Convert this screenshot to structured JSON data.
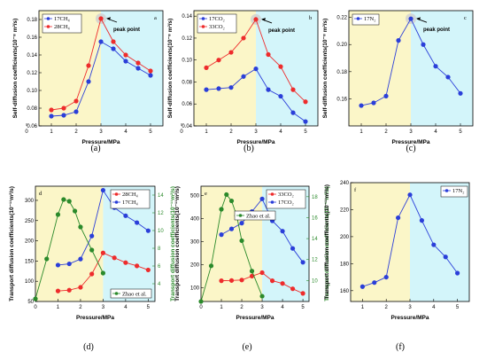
{
  "colors": {
    "red": "#ee2c2c",
    "blue": "#2b3fd9",
    "green": "#2b8a2b",
    "yellow_band": "#fbf6c8",
    "cyan_band": "#d3f5fa"
  },
  "chart_data": [
    {
      "id": "a",
      "panel_label": "(a)",
      "letter": "a",
      "type": "line",
      "xlabel": "Pressure/MPa",
      "ylabel": "Self-diffusion coefficients(10⁻⁸ m²/s)",
      "xlim": [
        0.5,
        5.5
      ],
      "ylim": [
        0.06,
        0.19
      ],
      "xticks": [
        0,
        1,
        2,
        3,
        4,
        5
      ],
      "yticks": [
        0.06,
        0.08,
        0.1,
        0.12,
        0.14,
        0.16,
        0.18
      ],
      "ydec": 2,
      "band_split": 3,
      "annotation": "peak point",
      "peak": {
        "x": 3,
        "y": 0.181
      },
      "series": [
        {
          "name": "17CH₄",
          "color": "blue",
          "x": [
            1,
            1.5,
            2,
            2.5,
            3,
            3.5,
            4,
            4.5,
            5
          ],
          "y": [
            0.071,
            0.072,
            0.076,
            0.11,
            0.155,
            0.147,
            0.133,
            0.125,
            0.117
          ]
        },
        {
          "name": "28CH₄",
          "color": "red",
          "x": [
            1,
            1.5,
            2,
            2.5,
            3,
            3.5,
            4,
            4.5,
            5
          ],
          "y": [
            0.078,
            0.08,
            0.088,
            0.128,
            0.181,
            0.155,
            0.14,
            0.131,
            0.122
          ]
        }
      ]
    },
    {
      "id": "b",
      "panel_label": "(b)",
      "letter": "b",
      "type": "line",
      "xlabel": "Pressure/MPa",
      "ylabel": "Self-diffusion coefficients(10⁻⁸ m²/s)",
      "xlim": [
        0.5,
        5.5
      ],
      "ylim": [
        0.04,
        0.145
      ],
      "xticks": [
        0,
        1,
        2,
        3,
        4,
        5
      ],
      "yticks": [
        0.04,
        0.06,
        0.08,
        0.1,
        0.12,
        0.14
      ],
      "ydec": 2,
      "band_split": 3,
      "annotation": "peak point",
      "peak": {
        "x": 3,
        "y": 0.137
      },
      "series": [
        {
          "name": "17CO₂",
          "color": "blue",
          "x": [
            1,
            1.5,
            2,
            2.5,
            3,
            3.5,
            4,
            4.5,
            5
          ],
          "y": [
            0.073,
            0.074,
            0.075,
            0.085,
            0.092,
            0.073,
            0.067,
            0.052,
            0.044
          ]
        },
        {
          "name": "33CO₂",
          "color": "red",
          "x": [
            1,
            1.5,
            2,
            2.5,
            3,
            3.5,
            4,
            4.5,
            5
          ],
          "y": [
            0.093,
            0.1,
            0.107,
            0.12,
            0.137,
            0.105,
            0.094,
            0.073,
            0.062
          ]
        }
      ]
    },
    {
      "id": "c",
      "panel_label": "(c)",
      "letter": "c",
      "type": "line",
      "xlabel": "Pressure/MPa",
      "ylabel": "Self-diffusion coefficients(10⁻⁸ m²/s)",
      "xlim": [
        0.5,
        5.5
      ],
      "ylim": [
        0.14,
        0.225
      ],
      "xticks": [
        1,
        2,
        3,
        4,
        5
      ],
      "yticks": [
        0.16,
        0.18,
        0.2,
        0.22
      ],
      "ydec": 2,
      "band_split": 3,
      "annotation": "peak point",
      "peak": {
        "x": 3,
        "y": 0.219
      },
      "series": [
        {
          "name": "17N₂",
          "color": "blue",
          "x": [
            1,
            1.5,
            2,
            2.5,
            3,
            3.5,
            4,
            4.5,
            5
          ],
          "y": [
            0.155,
            0.157,
            0.162,
            0.203,
            0.219,
            0.2,
            0.184,
            0.176,
            0.164
          ]
        }
      ]
    },
    {
      "id": "d",
      "panel_label": "(d)",
      "letter": "d",
      "type": "line",
      "xlabel": "Pressure/MPa",
      "ylabel": "Transport diffusion coefficients(10⁻¹¹m²/s)",
      "ylabel2": "Transport diffusion coefficients(10⁻¹¹m²/s)",
      "xlim": [
        0,
        5.3
      ],
      "ylim": [
        50,
        335
      ],
      "xticks": [
        0,
        1,
        2,
        3,
        4,
        5
      ],
      "yticks": [
        50,
        100,
        150,
        200,
        250,
        300
      ],
      "ydec": 0,
      "ylim2": [
        2,
        15
      ],
      "yticks2": [
        4,
        6,
        8,
        10,
        12,
        14
      ],
      "band_split": 3,
      "series": [
        {
          "name": "28CH₄",
          "color": "red",
          "x": [
            1,
            1.5,
            2,
            2.5,
            3,
            3.5,
            4,
            4.5,
            5
          ],
          "y": [
            76,
            78,
            85,
            118,
            170,
            158,
            146,
            138,
            128
          ]
        },
        {
          "name": "17CH₄",
          "color": "blue",
          "x": [
            1,
            1.5,
            2,
            2.5,
            3,
            3.5,
            4,
            4.5,
            5
          ],
          "y": [
            140,
            143,
            155,
            212,
            325,
            282,
            262,
            245,
            225
          ]
        },
        {
          "name": "Zhao et al.",
          "color": "green",
          "axis": "right",
          "x": [
            0,
            0.5,
            1,
            1.25,
            1.5,
            1.75,
            2,
            2.5,
            3
          ],
          "y": [
            2.3,
            6.8,
            11.8,
            13.5,
            13.3,
            12.2,
            10.4,
            7.8,
            5.2
          ]
        }
      ]
    },
    {
      "id": "e",
      "panel_label": "(e)",
      "letter": "e",
      "type": "line",
      "xlabel": "Pressure/MPa",
      "ylabel": "Transport diffusion coefficients(10⁻¹¹m²/s)",
      "ylabel2": "Transport diffusion coefficients(10⁻¹¹m²/s)",
      "xlim": [
        0,
        5.3
      ],
      "ylim": [
        40,
        540
      ],
      "xticks": [
        0,
        1,
        2,
        3,
        4,
        5
      ],
      "yticks": [
        100,
        200,
        300,
        400,
        500
      ],
      "ydec": 0,
      "ylim2": [
        8,
        19
      ],
      "yticks2": [
        10,
        12,
        14,
        16,
        18
      ],
      "band_split": 3,
      "series": [
        {
          "name": "33CO₂",
          "color": "red",
          "x": [
            1,
            1.5,
            2,
            2.5,
            3,
            3.5,
            4,
            4.5,
            5
          ],
          "y": [
            130,
            131,
            133,
            150,
            165,
            130,
            118,
            95,
            75
          ]
        },
        {
          "name": "17CO₂",
          "color": "blue",
          "x": [
            1,
            1.5,
            2,
            2.5,
            3,
            3.5,
            4,
            4.5,
            5
          ],
          "y": [
            330,
            355,
            380,
            430,
            485,
            390,
            345,
            270,
            210
          ]
        },
        {
          "name": "Zhao et al.",
          "color": "green",
          "axis": "right",
          "x": [
            0,
            0.5,
            1,
            1.25,
            1.5,
            1.75,
            2,
            2.5,
            3
          ],
          "y": [
            8.0,
            11.4,
            16.8,
            18.2,
            17.6,
            16.2,
            13.8,
            10.9,
            8.5
          ]
        }
      ]
    },
    {
      "id": "f",
      "panel_label": "(f)",
      "letter": "f",
      "type": "line",
      "xlabel": "Pressure/MPa",
      "ylabel": "Transport diffusion coefficients(10⁻¹¹m²/s)",
      "xlim": [
        0.5,
        5.5
      ],
      "ylim": [
        152,
        240
      ],
      "xticks": [
        1,
        2,
        3,
        4,
        5
      ],
      "yticks": [
        160,
        180,
        200,
        220,
        240
      ],
      "ydec": 0,
      "band_split": 3,
      "series": [
        {
          "name": "17N₂",
          "color": "blue",
          "x": [
            1,
            1.5,
            2,
            2.5,
            3,
            3.5,
            4,
            4.5,
            5
          ],
          "y": [
            163,
            166,
            170,
            214,
            231,
            212,
            194,
            185,
            173
          ]
        }
      ]
    }
  ]
}
